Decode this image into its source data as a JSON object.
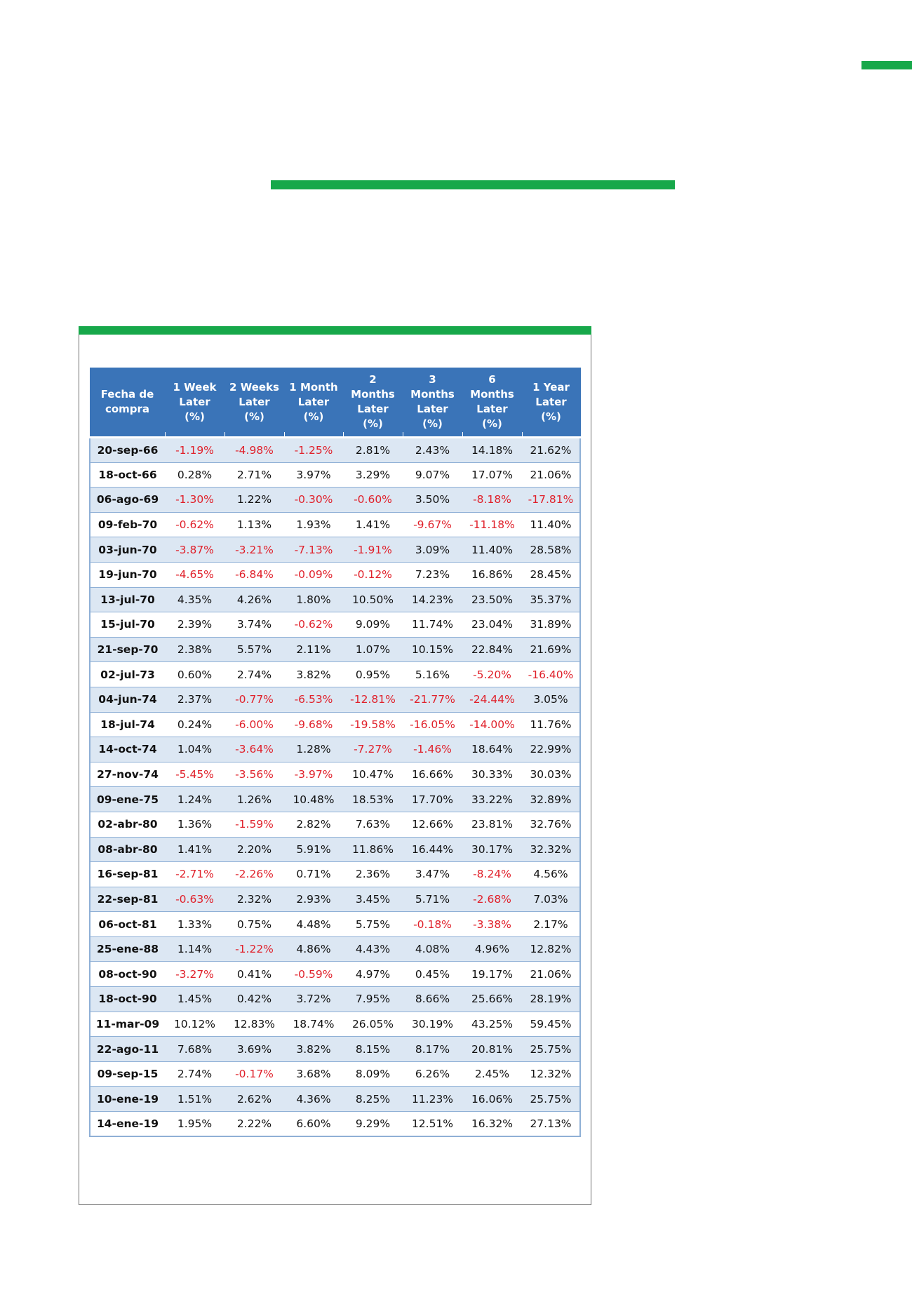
{
  "colors": {
    "accent_green": "#17a84a",
    "header_blue": "#3a74b8",
    "row_stripe": "#dce7f3",
    "negative_red": "#e0202a"
  },
  "table": {
    "headers": [
      "Fecha de compra",
      "1 Week Later (%)",
      "2 Weeks Later (%)",
      "1 Month Later (%)",
      "2 Months Later (%)",
      "3 Months Later (%)",
      "6 Months Later (%)",
      "1 Year Later (%)"
    ],
    "rows": [
      [
        "20-sep-66",
        "-1.19%",
        "-4.98%",
        "-1.25%",
        "2.81%",
        "2.43%",
        "14.18%",
        "21.62%"
      ],
      [
        "18-oct-66",
        "0.28%",
        "2.71%",
        "3.97%",
        "3.29%",
        "9.07%",
        "17.07%",
        "21.06%"
      ],
      [
        "06-ago-69",
        "-1.30%",
        "1.22%",
        "-0.30%",
        "-0.60%",
        "3.50%",
        "-8.18%",
        "-17.81%"
      ],
      [
        "09-feb-70",
        "-0.62%",
        "1.13%",
        "1.93%",
        "1.41%",
        "-9.67%",
        "-11.18%",
        "11.40%"
      ],
      [
        "03-jun-70",
        "-3.87%",
        "-3.21%",
        "-7.13%",
        "-1.91%",
        "3.09%",
        "11.40%",
        "28.58%"
      ],
      [
        "19-jun-70",
        "-4.65%",
        "-6.84%",
        "-0.09%",
        "-0.12%",
        "7.23%",
        "16.86%",
        "28.45%"
      ],
      [
        "13-jul-70",
        "4.35%",
        "4.26%",
        "1.80%",
        "10.50%",
        "14.23%",
        "23.50%",
        "35.37%"
      ],
      [
        "15-jul-70",
        "2.39%",
        "3.74%",
        "-0.62%",
        "9.09%",
        "11.74%",
        "23.04%",
        "31.89%"
      ],
      [
        "21-sep-70",
        "2.38%",
        "5.57%",
        "2.11%",
        "1.07%",
        "10.15%",
        "22.84%",
        "21.69%"
      ],
      [
        "02-jul-73",
        "0.60%",
        "2.74%",
        "3.82%",
        "0.95%",
        "5.16%",
        "-5.20%",
        "-16.40%"
      ],
      [
        "04-jun-74",
        "2.37%",
        "-0.77%",
        "-6.53%",
        "-12.81%",
        "-21.77%",
        "-24.44%",
        "3.05%"
      ],
      [
        "18-jul-74",
        "0.24%",
        "-6.00%",
        "-9.68%",
        "-19.58%",
        "-16.05%",
        "-14.00%",
        "11.76%"
      ],
      [
        "14-oct-74",
        "1.04%",
        "-3.64%",
        "1.28%",
        "-7.27%",
        "-1.46%",
        "18.64%",
        "22.99%"
      ],
      [
        "27-nov-74",
        "-5.45%",
        "-3.56%",
        "-3.97%",
        "10.47%",
        "16.66%",
        "30.33%",
        "30.03%"
      ],
      [
        "09-ene-75",
        "1.24%",
        "1.26%",
        "10.48%",
        "18.53%",
        "17.70%",
        "33.22%",
        "32.89%"
      ],
      [
        "02-abr-80",
        "1.36%",
        "-1.59%",
        "2.82%",
        "7.63%",
        "12.66%",
        "23.81%",
        "32.76%"
      ],
      [
        "08-abr-80",
        "1.41%",
        "2.20%",
        "5.91%",
        "11.86%",
        "16.44%",
        "30.17%",
        "32.32%"
      ],
      [
        "16-sep-81",
        "-2.71%",
        "-2.26%",
        "0.71%",
        "2.36%",
        "3.47%",
        "-8.24%",
        "4.56%"
      ],
      [
        "22-sep-81",
        "-0.63%",
        "2.32%",
        "2.93%",
        "3.45%",
        "5.71%",
        "-2.68%",
        "7.03%"
      ],
      [
        "06-oct-81",
        "1.33%",
        "0.75%",
        "4.48%",
        "5.75%",
        "-0.18%",
        "-3.38%",
        "2.17%"
      ],
      [
        "25-ene-88",
        "1.14%",
        "-1.22%",
        "4.86%",
        "4.43%",
        "4.08%",
        "4.96%",
        "12.82%"
      ],
      [
        "08-oct-90",
        "-3.27%",
        "0.41%",
        "-0.59%",
        "4.97%",
        "0.45%",
        "19.17%",
        "21.06%"
      ],
      [
        "18-oct-90",
        "1.45%",
        "0.42%",
        "3.72%",
        "7.95%",
        "8.66%",
        "25.66%",
        "28.19%"
      ],
      [
        "11-mar-09",
        "10.12%",
        "12.83%",
        "18.74%",
        "26.05%",
        "30.19%",
        "43.25%",
        "59.45%"
      ],
      [
        "22-ago-11",
        "7.68%",
        "3.69%",
        "3.82%",
        "8.15%",
        "8.17%",
        "20.81%",
        "25.75%"
      ],
      [
        "09-sep-15",
        "2.74%",
        "-0.17%",
        "3.68%",
        "8.09%",
        "6.26%",
        "2.45%",
        "12.32%"
      ],
      [
        "10-ene-19",
        "1.51%",
        "2.62%",
        "4.36%",
        "8.25%",
        "11.23%",
        "16.06%",
        "25.75%"
      ],
      [
        "14-ene-19",
        "1.95%",
        "2.22%",
        "6.60%",
        "9.29%",
        "12.51%",
        "16.32%",
        "27.13%"
      ]
    ]
  }
}
